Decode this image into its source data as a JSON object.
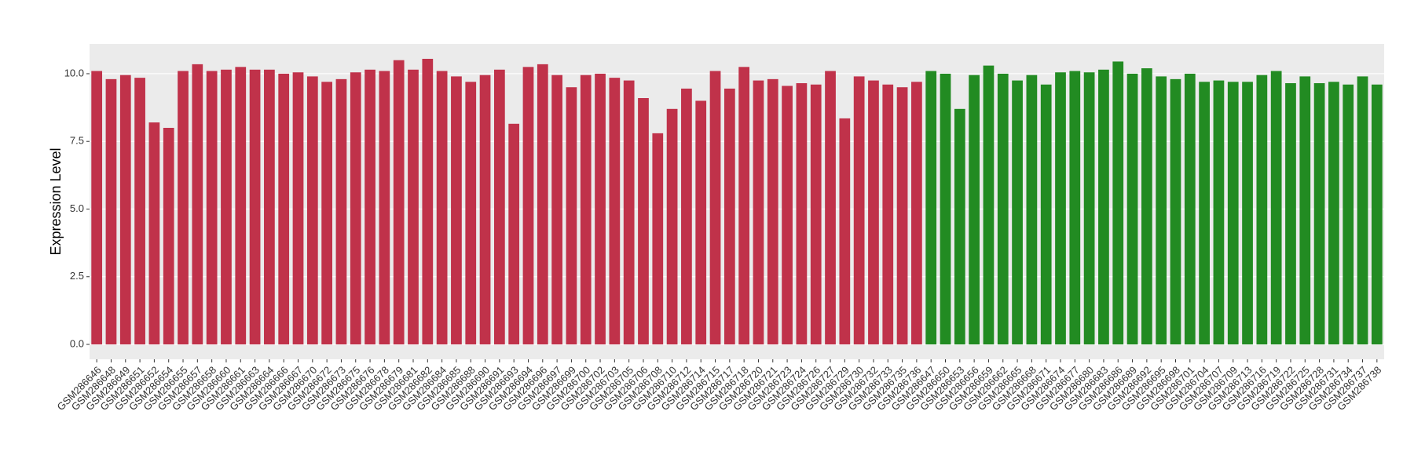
{
  "chart_data": {
    "type": "bar",
    "y_label": "Expression Level",
    "ylim": [
      -0.55,
      11.1
    ],
    "yticks": [
      {
        "value": 0,
        "label": "0.0"
      },
      {
        "value": 2.5,
        "label": "2.5"
      },
      {
        "value": 5,
        "label": "5.0"
      },
      {
        "value": 7.5,
        "label": "7.5"
      },
      {
        "value": 10,
        "label": "10.0"
      }
    ],
    "grid": true,
    "series": [
      {
        "color": "#c0324a",
        "categories": [
          "GSM286646",
          "GSM286648",
          "GSM286649",
          "GSM286651",
          "GSM286652",
          "GSM286654",
          "GSM286655",
          "GSM286657",
          "GSM286658",
          "GSM286660",
          "GSM286661",
          "GSM286663",
          "GSM286664",
          "GSM286666",
          "GSM286667",
          "GSM286670",
          "GSM286672",
          "GSM286673",
          "GSM286675",
          "GSM286676",
          "GSM286678",
          "GSM286679",
          "GSM286681",
          "GSM286682",
          "GSM286684",
          "GSM286685",
          "GSM286688",
          "GSM286690",
          "GSM286691",
          "GSM286693",
          "GSM286694",
          "GSM286696",
          "GSM286697",
          "GSM286699",
          "GSM286700",
          "GSM286702",
          "GSM286703",
          "GSM286705",
          "GSM286706",
          "GSM286708",
          "GSM286710",
          "GSM286712",
          "GSM286714",
          "GSM286715",
          "GSM286717",
          "GSM286718",
          "GSM286720",
          "GSM286721",
          "GSM286723",
          "GSM286724",
          "GSM286726",
          "GSM286727",
          "GSM286729",
          "GSM286730",
          "GSM286732",
          "GSM286733",
          "GSM286735",
          "GSM286736"
        ],
        "values": [
          10.1,
          9.8,
          9.95,
          9.85,
          8.2,
          8.0,
          10.1,
          10.35,
          10.1,
          10.15,
          10.25,
          10.15,
          10.15,
          10.0,
          10.05,
          9.9,
          9.7,
          9.8,
          10.05,
          10.15,
          10.1,
          10.5,
          10.15,
          10.55,
          10.1,
          9.9,
          9.7,
          9.95,
          10.15,
          8.15,
          10.25,
          10.35,
          9.95,
          9.5,
          9.95,
          10.0,
          9.85,
          9.75,
          9.1,
          7.8,
          8.7,
          9.45,
          9.0,
          10.1,
          9.45,
          10.25,
          9.75,
          9.8,
          9.55,
          9.65,
          9.6,
          10.1,
          8.35,
          9.9,
          9.75,
          9.6,
          9.5,
          9.7
        ]
      },
      {
        "color": "#228b22",
        "categories": [
          "GSM286647",
          "GSM286650",
          "GSM286653",
          "GSM286656",
          "GSM286659",
          "GSM286662",
          "GSM286665",
          "GSM286668",
          "GSM286671",
          "GSM286674",
          "GSM286677",
          "GSM286680",
          "GSM286683",
          "GSM286686",
          "GSM286689",
          "GSM286692",
          "GSM286695",
          "GSM286698",
          "GSM286701",
          "GSM286704",
          "GSM286707",
          "GSM286709",
          "GSM286713",
          "GSM286716",
          "GSM286719",
          "GSM286722",
          "GSM286725",
          "GSM286728",
          "GSM286731",
          "GSM286734",
          "GSM286737",
          "GSM286738"
        ],
        "values": [
          10.1,
          10.0,
          8.7,
          9.95,
          10.3,
          10.0,
          9.75,
          9.95,
          9.6,
          10.05,
          10.1,
          10.05,
          10.15,
          10.45,
          10.0,
          10.2,
          9.9,
          9.8,
          10.0,
          9.7,
          9.75,
          9.7,
          9.7,
          9.95,
          10.1,
          9.65,
          9.9,
          9.65,
          9.7,
          9.6,
          9.9,
          9.6
        ]
      }
    ]
  }
}
